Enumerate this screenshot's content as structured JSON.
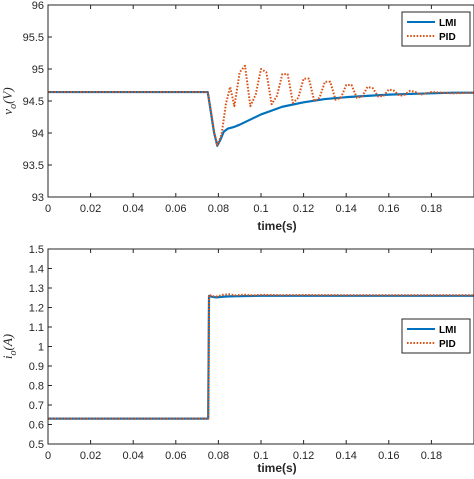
{
  "chart_data": [
    {
      "type": "line",
      "xlabel": "time(s)",
      "ylabel": "v_o(V)",
      "ylabel_main": "v",
      "ylabel_sub": "o",
      "ylabel_unit": "(V)",
      "xlim": [
        0,
        0.2
      ],
      "ylim": [
        93,
        96
      ],
      "xticks": [
        0,
        0.02,
        0.04,
        0.06,
        0.08,
        0.1,
        0.12,
        0.14,
        0.16,
        0.18
      ],
      "xtick_labels": [
        "0",
        "0.02",
        "0.04",
        "0.06",
        "0.08",
        "0.1",
        "0.12",
        "0.14",
        "0.16",
        "0.18"
      ],
      "yticks": [
        93,
        93.5,
        94,
        94.5,
        95,
        95.5,
        96
      ],
      "ytick_labels": [
        "93",
        "93.5",
        "94",
        "94.5",
        "95",
        "95.5",
        "96"
      ],
      "legend_position": "top-right",
      "series": [
        {
          "name": "LMI",
          "color": "#0072BD",
          "style": "solid",
          "x": [
            0,
            0.075,
            0.0765,
            0.078,
            0.0795,
            0.081,
            0.0825,
            0.0845,
            0.087,
            0.09,
            0.095,
            0.1,
            0.105,
            0.11,
            0.12,
            0.13,
            0.14,
            0.15,
            0.16,
            0.17,
            0.18,
            0.19,
            0.2
          ],
          "y": [
            94.64,
            94.64,
            94.32,
            94.0,
            93.8,
            93.9,
            94.02,
            94.07,
            94.09,
            94.13,
            94.21,
            94.29,
            94.35,
            94.41,
            94.48,
            94.53,
            94.56,
            94.58,
            94.6,
            94.61,
            94.62,
            94.63,
            94.63
          ]
        },
        {
          "name": "PID",
          "color": "#D95319",
          "style": "dotted",
          "x": [
            0,
            0.075,
            0.0765,
            0.078,
            0.0795,
            0.0815,
            0.0835,
            0.0855,
            0.0875,
            0.09,
            0.0925,
            0.095,
            0.0975,
            0.1,
            0.1025,
            0.105,
            0.1075,
            0.11,
            0.1125,
            0.115,
            0.1175,
            0.12,
            0.1225,
            0.125,
            0.1275,
            0.13,
            0.1325,
            0.135,
            0.1375,
            0.14,
            0.1425,
            0.145,
            0.1475,
            0.15,
            0.1525,
            0.155,
            0.1575,
            0.16,
            0.1625,
            0.165,
            0.1675,
            0.17,
            0.1725,
            0.175,
            0.18,
            0.19,
            0.2
          ],
          "y": [
            94.64,
            94.64,
            94.35,
            94.02,
            93.8,
            93.98,
            94.45,
            94.72,
            94.42,
            94.95,
            95.05,
            94.42,
            94.6,
            95.0,
            94.95,
            94.45,
            94.58,
            94.92,
            94.92,
            94.47,
            94.55,
            94.85,
            94.85,
            94.5,
            94.55,
            94.8,
            94.8,
            94.52,
            94.55,
            94.75,
            94.75,
            94.55,
            94.57,
            94.72,
            94.7,
            94.57,
            94.58,
            94.68,
            94.66,
            94.58,
            94.6,
            94.66,
            94.64,
            94.6,
            94.64,
            94.62,
            94.63
          ]
        }
      ]
    },
    {
      "type": "line",
      "xlabel": "time(s)",
      "ylabel": "i_o(A)",
      "ylabel_main": "i",
      "ylabel_sub": "o",
      "ylabel_unit": "(A)",
      "xlim": [
        0,
        0.2
      ],
      "ylim": [
        0.5,
        1.5
      ],
      "xticks": [
        0,
        0.02,
        0.04,
        0.06,
        0.08,
        0.1,
        0.12,
        0.14,
        0.16,
        0.18
      ],
      "xtick_labels": [
        "0",
        "0.02",
        "0.04",
        "0.06",
        "0.08",
        "0.1",
        "0.12",
        "0.14",
        "0.16",
        "0.18"
      ],
      "yticks": [
        0.5,
        0.6,
        0.7,
        0.8,
        0.9,
        1.0,
        1.1,
        1.2,
        1.3,
        1.4,
        1.5
      ],
      "ytick_labels": [
        "0.5",
        "0.6",
        "0.7",
        "0.8",
        "0.9",
        "1",
        "1.1",
        "1.2",
        "1.3",
        "1.4",
        "1.5"
      ],
      "legend_position": "middle-right",
      "series": [
        {
          "name": "LMI",
          "color": "#0072BD",
          "style": "solid",
          "x": [
            0,
            0.0752,
            0.0756,
            0.077,
            0.079,
            0.082,
            0.085,
            0.09,
            0.1,
            0.12,
            0.14,
            0.16,
            0.18,
            0.2
          ],
          "y": [
            0.63,
            0.63,
            1.26,
            1.255,
            1.252,
            1.255,
            1.257,
            1.258,
            1.26,
            1.26,
            1.26,
            1.26,
            1.26,
            1.26
          ]
        },
        {
          "name": "PID",
          "color": "#D95319",
          "style": "dotted",
          "x": [
            0,
            0.0752,
            0.0756,
            0.077,
            0.079,
            0.082,
            0.085,
            0.088,
            0.092,
            0.096,
            0.1,
            0.11,
            0.12,
            0.14,
            0.16,
            0.18,
            0.2
          ],
          "y": [
            0.63,
            0.63,
            1.265,
            1.258,
            1.256,
            1.265,
            1.268,
            1.262,
            1.266,
            1.262,
            1.265,
            1.263,
            1.264,
            1.263,
            1.263,
            1.263,
            1.263
          ]
        }
      ]
    }
  ]
}
